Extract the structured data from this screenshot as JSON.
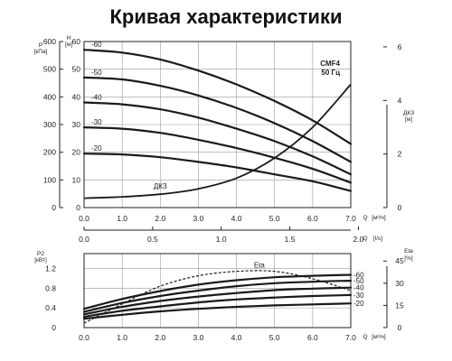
{
  "title": "Кривая характеристики",
  "chart_data": [
    {
      "type": "line",
      "model": "CMF4",
      "frequency": "50 Гц",
      "x_label": "Q",
      "x_unit": "[м³/ч]",
      "x_ticks": [
        "0.0",
        "1.0",
        "2.0",
        "3.0",
        "4.0",
        "5.0",
        "6.0",
        "7.0"
      ],
      "xlim": [
        0,
        7
      ],
      "x2_label": "Q",
      "x2_unit": "[l/s]",
      "x2_ticks": [
        "0.0",
        "0.5",
        "1.0",
        "1.5",
        "2.0"
      ],
      "y_left_label": "P",
      "y_left_unit": "[кПа]",
      "y_left_ticks": [
        "0",
        "100",
        "200",
        "300",
        "400",
        "500",
        "600"
      ],
      "y_left2_label": "H",
      "y_left2_unit": "[м]",
      "y_left2_ticks": [
        "0",
        "10",
        "20",
        "30",
        "40",
        "50",
        "60"
      ],
      "ylim": [
        0,
        60
      ],
      "y_right_label": "ДКЗ",
      "y_right_unit": "[м]",
      "y_right_ticks": [
        "0",
        "2",
        "4",
        "6"
      ],
      "y_right_lim": [
        0,
        6.2
      ],
      "series": [
        {
          "name": "-60",
          "x": [
            0,
            1,
            2,
            3,
            4,
            5,
            6,
            7
          ],
          "y": [
            57,
            56,
            53.5,
            49.5,
            44.5,
            38.5,
            31.5,
            23
          ]
        },
        {
          "name": "-50",
          "x": [
            0,
            1,
            2,
            3,
            4,
            5,
            6,
            7
          ],
          "y": [
            47,
            46.3,
            44,
            40.5,
            36,
            30.5,
            24,
            16.5
          ]
        },
        {
          "name": "-40",
          "x": [
            0,
            1,
            2,
            3,
            4,
            5,
            6,
            7
          ],
          "y": [
            38,
            37.3,
            35.5,
            32.5,
            28.5,
            24,
            18.5,
            12
          ]
        },
        {
          "name": "-30",
          "x": [
            0,
            1,
            2,
            3,
            4,
            5,
            6,
            7
          ],
          "y": [
            29,
            28.5,
            27,
            24.5,
            21.5,
            18,
            14,
            9
          ]
        },
        {
          "name": "-20",
          "x": [
            0,
            1,
            2,
            3,
            4,
            5,
            6,
            7
          ],
          "y": [
            19.5,
            19.2,
            18.2,
            16.5,
            14.5,
            12,
            9.5,
            6
          ]
        }
      ],
      "npsh": {
        "name": "ДКЗ",
        "x": [
          0,
          1,
          2,
          3,
          4,
          5,
          6,
          7
        ],
        "y": [
          0.35,
          0.4,
          0.5,
          0.7,
          1.1,
          1.85,
          3,
          4.6
        ]
      }
    },
    {
      "type": "line",
      "x_label": "Q",
      "x_unit": "[м³/ч]",
      "x_ticks": [
        "0.0",
        "1.0",
        "2.0",
        "3.0",
        "4.0",
        "5.0",
        "6.0",
        "7.0"
      ],
      "xlim": [
        0,
        7
      ],
      "y_left_label": "P2",
      "y_left_unit": "[кВт]",
      "y_left_ticks": [
        "0",
        "0.4",
        "0.8",
        "1.2"
      ],
      "ylim": [
        0,
        1.5
      ],
      "y_right_label": "Eta",
      "y_right_unit": "[%]",
      "y_right_ticks": [
        "0",
        "15",
        "30",
        "45"
      ],
      "y_right_lim": [
        0,
        50
      ],
      "series": [
        {
          "name": "-60",
          "x": [
            0,
            1,
            2,
            3,
            4,
            5,
            6,
            7
          ],
          "y": [
            0.38,
            0.58,
            0.74,
            0.87,
            0.96,
            1.02,
            1.05,
            1.07
          ]
        },
        {
          "name": "-50",
          "x": [
            0,
            1,
            2,
            3,
            4,
            5,
            6,
            7
          ],
          "y": [
            0.32,
            0.5,
            0.64,
            0.75,
            0.84,
            0.9,
            0.93,
            0.95
          ]
        },
        {
          "name": "-40",
          "x": [
            0,
            1,
            2,
            3,
            4,
            5,
            6,
            7
          ],
          "y": [
            0.27,
            0.42,
            0.54,
            0.63,
            0.7,
            0.76,
            0.79,
            0.81
          ]
        },
        {
          "name": "-30",
          "x": [
            0,
            1,
            2,
            3,
            4,
            5,
            6,
            7
          ],
          "y": [
            0.22,
            0.34,
            0.43,
            0.51,
            0.57,
            0.61,
            0.64,
            0.66
          ]
        },
        {
          "name": "-20",
          "x": [
            0,
            1,
            2,
            3,
            4,
            5,
            6,
            7
          ],
          "y": [
            0.18,
            0.26,
            0.33,
            0.38,
            0.42,
            0.45,
            0.47,
            0.49
          ]
        }
      ],
      "efficiency": {
        "name": "Eta",
        "x": [
          0,
          1,
          2,
          3,
          4,
          5,
          6,
          7
        ],
        "y": [
          3,
          16,
          28,
          35,
          38,
          38,
          33,
          25
        ]
      }
    }
  ]
}
